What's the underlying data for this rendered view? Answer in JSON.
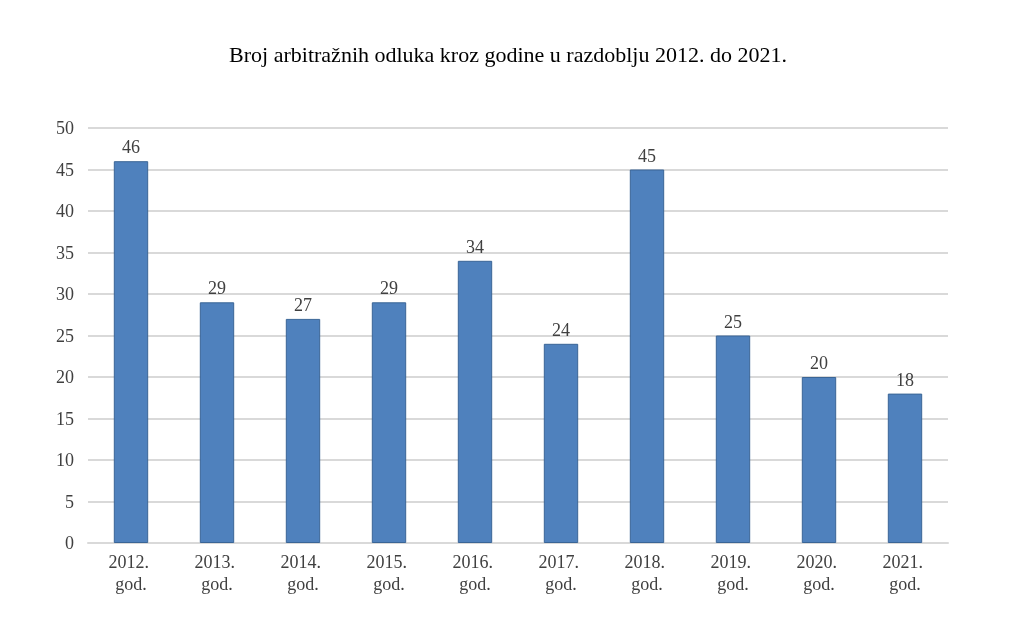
{
  "chart_data": {
    "type": "bar",
    "title": "Broj arbitražnih odluka kroz godine u razdoblju 2012. do 2021.",
    "categories": [
      "2012. god.",
      "2013. god.",
      "2014. god.",
      "2015. god.",
      "2016. god.",
      "2017. god.",
      "2018. god.",
      "2019. god.",
      "2020. god.",
      "2021. god."
    ],
    "values": [
      46,
      29,
      27,
      29,
      34,
      24,
      45,
      25,
      20,
      18
    ],
    "color": "#4f81bd",
    "ylim": [
      0,
      50
    ],
    "yticks": [
      0,
      5,
      10,
      15,
      20,
      25,
      30,
      35,
      40,
      45,
      50
    ],
    "grid": "y",
    "data_labels": true
  }
}
